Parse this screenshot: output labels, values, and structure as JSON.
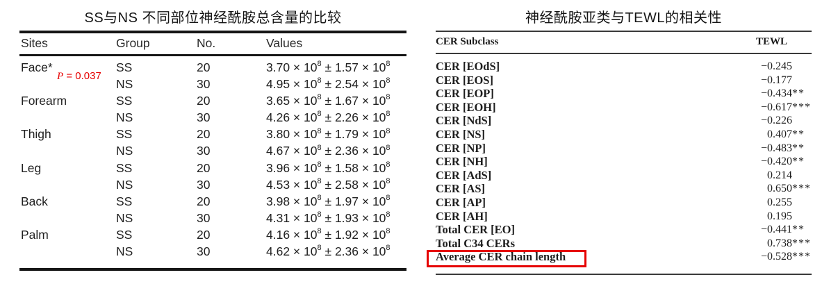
{
  "page": {
    "background": "#ffffff"
  },
  "left_table": {
    "title": "SS与NS 不同部位神经酰胺总含量的比较",
    "headers": [
      "Sites",
      "Group",
      "No.",
      "Values"
    ],
    "times_symbol": "×",
    "plus_minus_symbol": "±",
    "base": "10",
    "exponent": "8",
    "annotation": {
      "p": "P",
      "rest": " = 0.037",
      "color": "#e60000"
    },
    "rows": [
      {
        "site": "Face*",
        "group": "SS",
        "no": "20",
        "mean": "3.70",
        "sd": "1.57"
      },
      {
        "site": "",
        "group": "NS",
        "no": "30",
        "mean": "4.95",
        "sd": "2.54"
      },
      {
        "site": "Forearm",
        "group": "SS",
        "no": "20",
        "mean": "3.65",
        "sd": "1.67"
      },
      {
        "site": "",
        "group": "NS",
        "no": "30",
        "mean": "4.26",
        "sd": "2.26"
      },
      {
        "site": "Thigh",
        "group": "SS",
        "no": "20",
        "mean": "3.80",
        "sd": "1.79"
      },
      {
        "site": "",
        "group": "NS",
        "no": "30",
        "mean": "4.67",
        "sd": "2.36"
      },
      {
        "site": "Leg",
        "group": "SS",
        "no": "20",
        "mean": "3.96",
        "sd": "1.58"
      },
      {
        "site": "",
        "group": "NS",
        "no": "30",
        "mean": "4.53",
        "sd": "2.58"
      },
      {
        "site": "Back",
        "group": "SS",
        "no": "20",
        "mean": "3.98",
        "sd": "1.97"
      },
      {
        "site": "",
        "group": "NS",
        "no": "30",
        "mean": "4.31",
        "sd": "1.93"
      },
      {
        "site": "Palm",
        "group": "SS",
        "no": "20",
        "mean": "4.16",
        "sd": "1.92"
      },
      {
        "site": "",
        "group": "NS",
        "no": "30",
        "mean": "4.62",
        "sd": "2.36"
      }
    ]
  },
  "right_table": {
    "title": "神经酰胺亚类与TEWL的相关性",
    "headers": [
      "CER Subclass",
      "TEWL"
    ],
    "highlight_color": "#e60000",
    "rows": [
      {
        "label": "CER [EOdS]",
        "value": "−0.245",
        "stars": ""
      },
      {
        "label": "CER [EOS]",
        "value": "−0.177",
        "stars": ""
      },
      {
        "label": "CER [EOP]",
        "value": "−0.434",
        "stars": "**"
      },
      {
        "label": "CER [EOH]",
        "value": "−0.617",
        "stars": "***"
      },
      {
        "label": "CER [NdS]",
        "value": "−0.226",
        "stars": ""
      },
      {
        "label": "CER [NS]",
        "value": "0.407",
        "stars": "**"
      },
      {
        "label": "CER [NP]",
        "value": "−0.483",
        "stars": "**"
      },
      {
        "label": "CER [NH]",
        "value": "−0.420",
        "stars": "**"
      },
      {
        "label": "CER [AdS]",
        "value": "0.214",
        "stars": ""
      },
      {
        "label": "CER [AS]",
        "value": "0.650",
        "stars": "***"
      },
      {
        "label": "CER [AP]",
        "value": "0.255",
        "stars": ""
      },
      {
        "label": "CER [AH]",
        "value": "0.195",
        "stars": ""
      },
      {
        "label": "Total CER [EO]",
        "value": "−0.441",
        "stars": "**"
      },
      {
        "label": "Total C34 CERs",
        "value": "0.738",
        "stars": "***"
      },
      {
        "label": "Average CER chain length",
        "value": "−0.528",
        "stars": "***",
        "highlighted": true
      }
    ]
  }
}
